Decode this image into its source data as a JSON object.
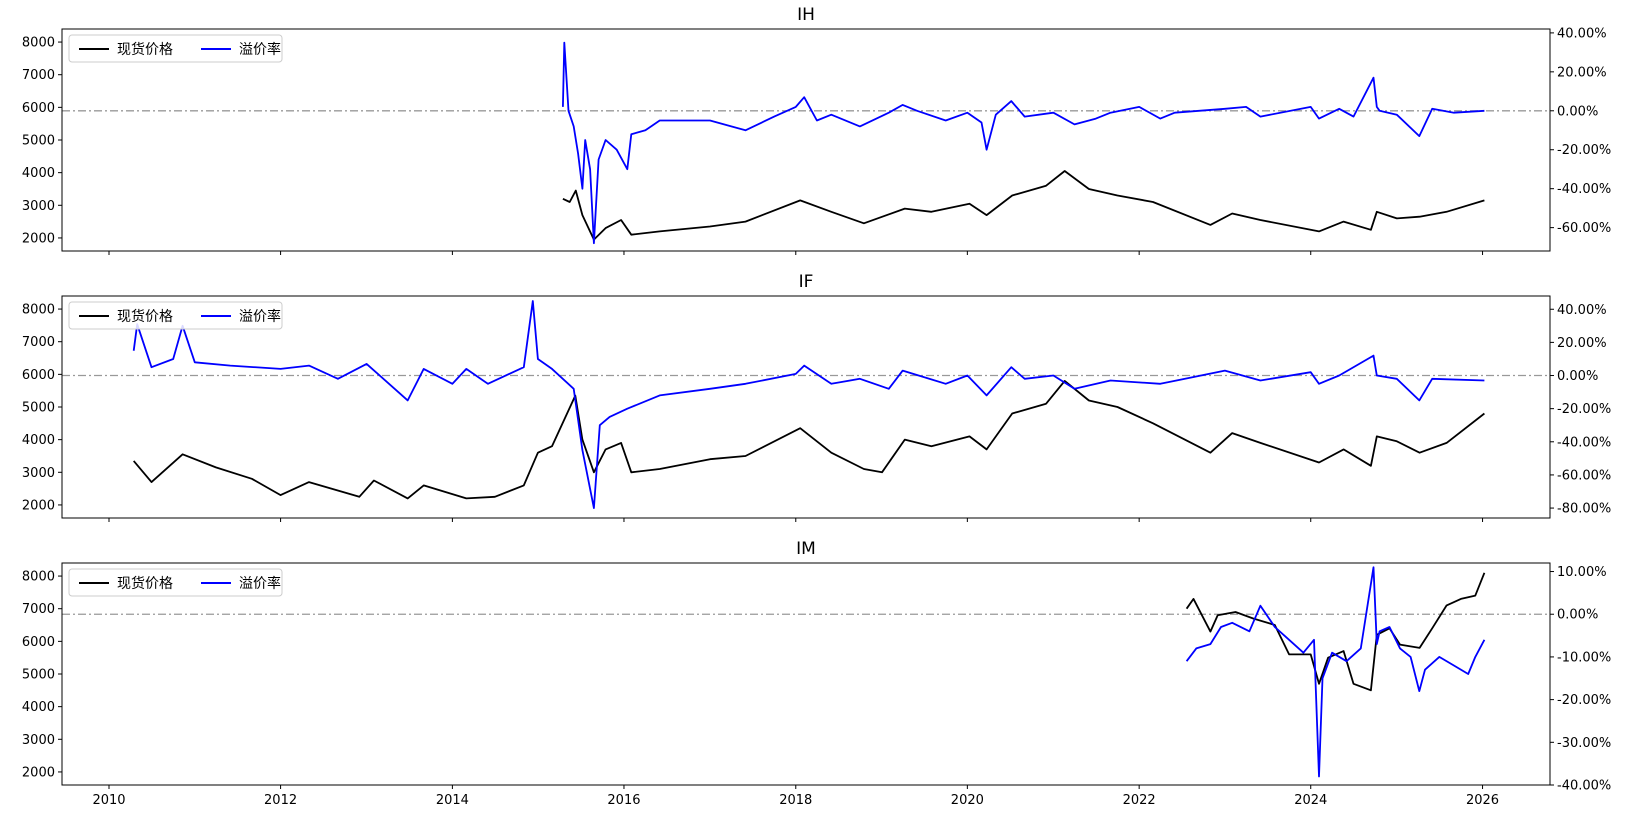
{
  "colors": {
    "spot": "#000000",
    "premium": "#0000ff",
    "zero_line": "#999999",
    "axes": "#000000",
    "background": "#ffffff"
  },
  "chart_data": [
    {
      "type": "line",
      "title": "IH",
      "legend_position": "top-left",
      "grid": false,
      "x_axis": {
        "range": [
          "2009-06-15",
          "2026-10-15"
        ],
        "ticks": [
          "2010",
          "2012",
          "2014",
          "2016",
          "2018",
          "2020",
          "2022",
          "2024",
          "2026"
        ],
        "tick_labels_visible": false
      },
      "y_left": {
        "range": [
          1600,
          8400
        ],
        "ticks": [
          "2000",
          "3000",
          "4000",
          "5000",
          "6000",
          "7000",
          "8000"
        ]
      },
      "y_right": {
        "range": [
          -0.72,
          0.42
        ],
        "ticks": [
          "-60.00%",
          "-40.00%",
          "-20.00%",
          "0.00%",
          "20.00%",
          "40.00%"
        ],
        "reference_line": 0
      },
      "series": [
        {
          "name": "现货价格",
          "axis": "left",
          "color": "#000000",
          "x": [
            "2015-04-16",
            "2015-05-15",
            "2015-06-10",
            "2015-07-08",
            "2015-08-26",
            "2015-10-15",
            "2015-12-20",
            "2016-02-01",
            "2016-06-01",
            "2017-01-01",
            "2017-06-01",
            "2018-01-20",
            "2018-06-01",
            "2018-10-18",
            "2019-04-10",
            "2019-08-01",
            "2020-01-10",
            "2020-03-23",
            "2020-07-10",
            "2020-12-01",
            "2021-02-18",
            "2021-06-01",
            "2021-10-01",
            "2022-03-01",
            "2022-10-31",
            "2023-02-01",
            "2023-06-01",
            "2024-02-05",
            "2024-05-20",
            "2024-09-13",
            "2024-10-08",
            "2025-01-01",
            "2025-04-08",
            "2025-08-01",
            "2026-01-09"
          ],
          "y": [
            3200,
            3100,
            3450,
            2700,
            1950,
            2300,
            2550,
            2100,
            2200,
            2350,
            2500,
            3150,
            2800,
            2450,
            2900,
            2800,
            3050,
            2700,
            3300,
            3600,
            4050,
            3500,
            3300,
            3100,
            2400,
            2750,
            2550,
            2200,
            2500,
            2250,
            2800,
            2600,
            2650,
            2800,
            3150
          ]
        },
        {
          "name": "溢价率",
          "axis": "right",
          "color": "#0000ff",
          "x": [
            "2015-04-16",
            "2015-04-22",
            "2015-05-10",
            "2015-06-01",
            "2015-06-20",
            "2015-07-08",
            "2015-07-20",
            "2015-08-10",
            "2015-08-26",
            "2015-09-15",
            "2015-10-15",
            "2015-12-01",
            "2016-01-15",
            "2016-02-01",
            "2016-04-01",
            "2016-06-01",
            "2017-01-01",
            "2017-06-01",
            "2017-10-01",
            "2018-01-01",
            "2018-02-06",
            "2018-04-01",
            "2018-06-01",
            "2018-10-01",
            "2019-02-01",
            "2019-04-01",
            "2019-06-01",
            "2019-10-01",
            "2020-01-01",
            "2020-03-01",
            "2020-03-23",
            "2020-05-01",
            "2020-07-06",
            "2020-09-01",
            "2021-01-01",
            "2021-04-01",
            "2021-07-01",
            "2021-09-01",
            "2022-01-01",
            "2022-04-01",
            "2022-06-01",
            "2023-01-01",
            "2023-04-01",
            "2023-06-01",
            "2024-01-01",
            "2024-02-05",
            "2024-05-01",
            "2024-07-01",
            "2024-09-24",
            "2024-10-08",
            "2024-10-20",
            "2025-01-01",
            "2025-04-07",
            "2025-06-01",
            "2025-09-01",
            "2026-01-09"
          ],
          "y": [
            0.02,
            0.35,
            0.0,
            -0.08,
            -0.22,
            -0.4,
            -0.15,
            -0.3,
            -0.68,
            -0.25,
            -0.15,
            -0.2,
            -0.3,
            -0.12,
            -0.1,
            -0.05,
            -0.05,
            -0.1,
            -0.03,
            0.02,
            0.07,
            -0.05,
            -0.02,
            -0.08,
            -0.01,
            0.03,
            0.0,
            -0.05,
            -0.01,
            -0.06,
            -0.2,
            -0.02,
            0.05,
            -0.03,
            -0.01,
            -0.07,
            -0.04,
            -0.01,
            0.02,
            -0.04,
            -0.01,
            0.01,
            0.02,
            -0.03,
            0.02,
            -0.04,
            0.01,
            -0.03,
            0.17,
            0.02,
            0.0,
            -0.02,
            -0.13,
            0.01,
            -0.01,
            0.0
          ]
        }
      ]
    },
    {
      "type": "line",
      "title": "IF",
      "legend_position": "top-left",
      "grid": false,
      "x_axis": {
        "range": [
          "2009-06-15",
          "2026-10-15"
        ],
        "ticks": [
          "2010",
          "2012",
          "2014",
          "2016",
          "2018",
          "2020",
          "2022",
          "2024",
          "2026"
        ],
        "tick_labels_visible": false
      },
      "y_left": {
        "range": [
          1600,
          8400
        ],
        "ticks": [
          "2000",
          "3000",
          "4000",
          "5000",
          "6000",
          "7000",
          "8000"
        ]
      },
      "y_right": {
        "range": [
          -0.86,
          0.48
        ],
        "ticks": [
          "-80.00%",
          "-60.00%",
          "-40.00%",
          "-20.00%",
          "0.00%",
          "20.00%",
          "40.00%"
        ],
        "reference_line": 0
      },
      "series": [
        {
          "name": "现货价格",
          "axis": "left",
          "color": "#000000",
          "x": [
            "2010-04-16",
            "2010-07-01",
            "2010-11-10",
            "2011-04-01",
            "2011-09-01",
            "2012-01-01",
            "2012-05-01",
            "2012-12-01",
            "2013-02-01",
            "2013-06-25",
            "2013-09-01",
            "2014-03-01",
            "2014-07-01",
            "2014-11-01",
            "2014-12-31",
            "2015-03-01",
            "2015-06-08",
            "2015-07-08",
            "2015-08-26",
            "2015-10-15",
            "2015-12-20",
            "2016-02-01",
            "2016-06-01",
            "2017-01-01",
            "2017-06-01",
            "2018-01-20",
            "2018-06-01",
            "2018-10-18",
            "2019-01-03",
            "2019-04-10",
            "2019-08-01",
            "2020-01-10",
            "2020-03-23",
            "2020-07-10",
            "2020-12-01",
            "2021-02-18",
            "2021-06-01",
            "2021-10-01",
            "2022-03-01",
            "2022-10-31",
            "2023-02-01",
            "2023-06-01",
            "2024-02-05",
            "2024-05-20",
            "2024-09-13",
            "2024-10-08",
            "2025-01-01",
            "2025-04-08",
            "2025-08-01",
            "2026-01-09"
          ],
          "y": [
            3350,
            2700,
            3550,
            3150,
            2800,
            2300,
            2700,
            2250,
            2750,
            2200,
            2600,
            2200,
            2250,
            2600,
            3600,
            3800,
            5350,
            4000,
            3000,
            3700,
            3900,
            3000,
            3100,
            3400,
            3500,
            4350,
            3600,
            3100,
            3000,
            4000,
            3800,
            4100,
            3700,
            4800,
            5100,
            5800,
            5200,
            5000,
            4500,
            3600,
            4200,
            3900,
            3300,
            3700,
            3200,
            4100,
            3950,
            3600,
            3900,
            4800
          ]
        },
        {
          "name": "溢价率",
          "axis": "right",
          "color": "#0000ff",
          "x": [
            "2010-04-16",
            "2010-05-01",
            "2010-07-01",
            "2010-10-01",
            "2010-11-10",
            "2011-01-01",
            "2011-06-01",
            "2012-01-01",
            "2012-05-01",
            "2012-09-01",
            "2013-01-01",
            "2013-06-25",
            "2013-09-01",
            "2014-01-01",
            "2014-03-01",
            "2014-06-01",
            "2014-11-01",
            "2014-12-09",
            "2014-12-31",
            "2015-03-01",
            "2015-06-01",
            "2015-07-08",
            "2015-08-26",
            "2015-09-20",
            "2015-11-01",
            "2016-01-15",
            "2016-06-01",
            "2017-01-01",
            "2017-06-01",
            "2018-01-01",
            "2018-02-06",
            "2018-06-01",
            "2018-10-01",
            "2019-02-01",
            "2019-04-01",
            "2019-10-01",
            "2020-01-01",
            "2020-03-23",
            "2020-07-06",
            "2020-09-01",
            "2021-01-01",
            "2021-04-01",
            "2021-09-01",
            "2022-04-01",
            "2023-01-01",
            "2023-06-01",
            "2024-01-01",
            "2024-02-05",
            "2024-05-01",
            "2024-09-24",
            "2024-10-08",
            "2025-01-01",
            "2025-04-07",
            "2025-06-01",
            "2026-01-09"
          ],
          "y": [
            0.15,
            0.31,
            0.05,
            0.1,
            0.3,
            0.08,
            0.06,
            0.04,
            0.06,
            -0.02,
            0.07,
            -0.15,
            0.04,
            -0.05,
            0.04,
            -0.05,
            0.05,
            0.45,
            0.1,
            0.04,
            -0.08,
            -0.45,
            -0.8,
            -0.3,
            -0.25,
            -0.2,
            -0.12,
            -0.08,
            -0.05,
            0.01,
            0.06,
            -0.05,
            -0.02,
            -0.08,
            0.03,
            -0.05,
            0.0,
            -0.12,
            0.05,
            -0.02,
            0.0,
            -0.08,
            -0.03,
            -0.05,
            0.03,
            -0.03,
            0.02,
            -0.05,
            0.0,
            0.12,
            0.0,
            -0.02,
            -0.15,
            -0.02,
            -0.03
          ]
        }
      ]
    },
    {
      "type": "line",
      "title": "IM",
      "legend_position": "top-left",
      "grid": false,
      "x_axis": {
        "range": [
          "2009-06-15",
          "2026-10-15"
        ],
        "ticks": [
          "2010",
          "2012",
          "2014",
          "2016",
          "2018",
          "2020",
          "2022",
          "2024",
          "2026"
        ],
        "tick_labels_visible": true
      },
      "y_left": {
        "range": [
          1600,
          8400
        ],
        "ticks": [
          "2000",
          "3000",
          "4000",
          "5000",
          "6000",
          "7000",
          "8000"
        ]
      },
      "y_right": {
        "range": [
          -0.4,
          0.12
        ],
        "ticks": [
          "-40.00%",
          "-30.00%",
          "-20.00%",
          "-10.00%",
          "0.00%",
          "10.00%"
        ],
        "reference_line": 0
      },
      "series": [
        {
          "name": "现货价格",
          "axis": "left",
          "color": "#000000",
          "x": [
            "2022-07-22",
            "2022-08-20",
            "2022-10-31",
            "2022-12-01",
            "2023-02-15",
            "2023-05-01",
            "2023-08-01",
            "2023-10-01",
            "2024-01-01",
            "2024-02-05",
            "2024-03-15",
            "2024-05-20",
            "2024-07-01",
            "2024-09-13",
            "2024-10-08",
            "2024-12-01",
            "2025-01-15",
            "2025-04-08",
            "2025-06-01",
            "2025-08-01",
            "2025-10-01",
            "2025-12-01",
            "2026-01-09"
          ],
          "y": [
            7000,
            7300,
            6300,
            6800,
            6900,
            6700,
            6500,
            5600,
            5600,
            4700,
            5500,
            5700,
            4700,
            4500,
            6200,
            6400,
            5900,
            5800,
            6400,
            7100,
            7300,
            7400,
            8100
          ]
        },
        {
          "name": "溢价率",
          "axis": "right",
          "color": "#0000ff",
          "x": [
            "2022-07-22",
            "2022-09-01",
            "2022-10-31",
            "2022-12-15",
            "2023-02-01",
            "2023-04-15",
            "2023-06-01",
            "2023-08-01",
            "2023-10-01",
            "2023-12-01",
            "2024-01-15",
            "2024-02-05",
            "2024-02-20",
            "2024-04-01",
            "2024-06-01",
            "2024-08-01",
            "2024-09-24",
            "2024-10-08",
            "2024-10-20",
            "2024-12-01",
            "2025-01-15",
            "2025-03-01",
            "2025-04-07",
            "2025-05-01",
            "2025-07-01",
            "2025-09-01",
            "2025-11-01",
            "2025-12-01",
            "2026-01-09"
          ],
          "y": [
            -0.11,
            -0.08,
            -0.07,
            -0.03,
            -0.02,
            -0.04,
            0.02,
            -0.03,
            -0.06,
            -0.09,
            -0.06,
            -0.38,
            -0.15,
            -0.09,
            -0.11,
            -0.08,
            0.11,
            -0.07,
            -0.04,
            -0.03,
            -0.08,
            -0.1,
            -0.18,
            -0.13,
            -0.1,
            -0.12,
            -0.14,
            -0.1,
            -0.06
          ]
        }
      ]
    }
  ]
}
